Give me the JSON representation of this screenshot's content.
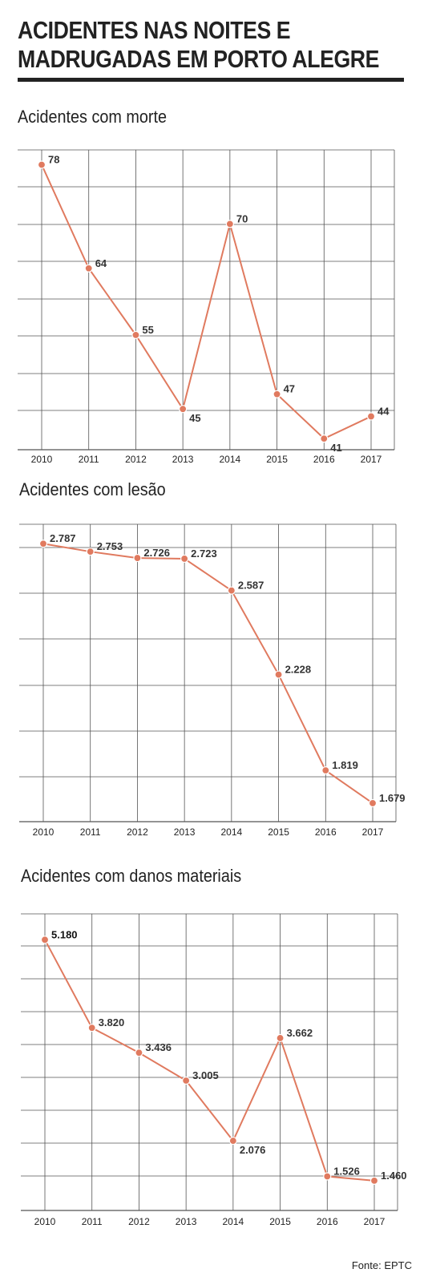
{
  "header": {
    "title_line1": "ACIDENTES NAS NOITES E",
    "title_line2": "MADRUGADAS EM PORTO ALEGRE"
  },
  "colors": {
    "line": "#e07a5f",
    "grid": "#555555",
    "text": "#333333"
  },
  "chart_data": [
    {
      "type": "line",
      "title": "Acidentes com morte",
      "categories": [
        "2010",
        "2011",
        "2012",
        "2013",
        "2014",
        "2015",
        "2016",
        "2017"
      ],
      "values": [
        78,
        64,
        55,
        45,
        70,
        47,
        41,
        44
      ],
      "labels": [
        "78",
        "64",
        "55",
        "45",
        "70",
        "47",
        "41",
        "44"
      ],
      "ylim": [
        39.5,
        80
      ],
      "grid": true
    },
    {
      "type": "line",
      "title": "Acidentes com lesão",
      "categories": [
        "2010",
        "2011",
        "2012",
        "2013",
        "2014",
        "2015",
        "2016",
        "2017"
      ],
      "values": [
        2787,
        2753,
        2726,
        2723,
        2587,
        2228,
        1819,
        1679
      ],
      "labels": [
        "2.787",
        "2.753",
        "2.726",
        "2.723",
        "2.587",
        "2.228",
        "1.819",
        "1.679"
      ],
      "ylim": [
        1600,
        2870
      ],
      "grid": true
    },
    {
      "type": "line",
      "title": "Acidentes com danos materiais",
      "categories": [
        "2010",
        "2011",
        "2012",
        "2013",
        "2014",
        "2015",
        "2016",
        "2017"
      ],
      "values": [
        5180,
        3820,
        3436,
        3005,
        2076,
        3662,
        1526,
        1460
      ],
      "labels": [
        "5.180",
        "3.820",
        "3.436",
        "3.005",
        "2.076",
        "3.662",
        "1.526",
        "1.460"
      ],
      "ylim": [
        1000,
        5580
      ],
      "grid": true
    }
  ],
  "source": "Fonte: EPTC"
}
